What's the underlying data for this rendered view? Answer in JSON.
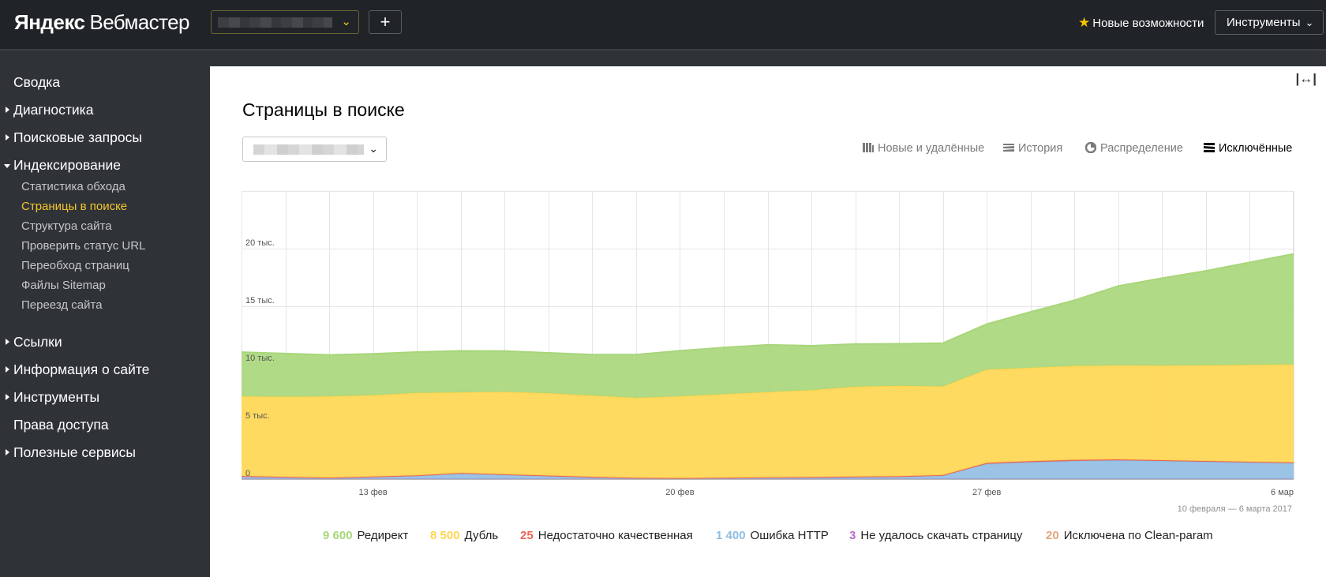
{
  "header": {
    "logo_brand": "Яндекс",
    "logo_product": "Вебмастер",
    "add_site_label": "+",
    "whats_new_label": "Новые возможности",
    "tools_label": "Инструменты"
  },
  "sidebar": {
    "items": [
      {
        "label": "Сводка",
        "expandable": false
      },
      {
        "label": "Диагностика",
        "expandable": true
      },
      {
        "label": "Поисковые запросы",
        "expandable": true
      },
      {
        "label": "Индексирование",
        "expandable": true,
        "expanded": true
      },
      {
        "label": "Ссылки",
        "expandable": true
      },
      {
        "label": "Информация о сайте",
        "expandable": true
      },
      {
        "label": "Инструменты",
        "expandable": true
      },
      {
        "label": "Права доступа",
        "expandable": false
      },
      {
        "label": "Полезные сервисы",
        "expandable": true
      }
    ],
    "indexing_subitems": [
      {
        "label": "Статистика обхода"
      },
      {
        "label": "Страницы в поиске",
        "active": true
      },
      {
        "label": "Структура сайта"
      },
      {
        "label": "Проверить статус URL"
      },
      {
        "label": "Переобход страниц"
      },
      {
        "label": "Файлы Sitemap"
      },
      {
        "label": "Переезд сайта"
      }
    ]
  },
  "main": {
    "title": "Страницы в поиске",
    "tabs": [
      {
        "label": "Новые и удалённые",
        "icon": "bars-icon"
      },
      {
        "label": "История",
        "icon": "history-icon"
      },
      {
        "label": "Распределение",
        "icon": "pie-icon"
      },
      {
        "label": "Исключённые",
        "icon": "layers-icon",
        "active": true
      }
    ],
    "date_range": "10 февраля — 6 марта 2017"
  },
  "chart_data": {
    "type": "area",
    "stacked": true,
    "x": [
      "10 фев",
      "11 фев",
      "12 фев",
      "13 фев",
      "14 фев",
      "15 фев",
      "16 фев",
      "17 фев",
      "18 фев",
      "19 фев",
      "20 фев",
      "21 фев",
      "22 фев",
      "23 фев",
      "24 фев",
      "25 фев",
      "26 фев",
      "27 фев",
      "28 фев",
      "1 мар",
      "2 мар",
      "3 мар",
      "4 мар",
      "5 мар",
      "6 мар"
    ],
    "x_tick_labels": [
      "13 фев",
      "20 фев",
      "27 фев",
      "6 мар"
    ],
    "y_tick_labels": [
      "0",
      "5 тыс.",
      "10 тыс.",
      "15 тыс.",
      "20 тыс."
    ],
    "ylim": [
      0,
      25000
    ],
    "grid": true,
    "series": [
      {
        "name": "Исключена по Clean-param",
        "color": "#e0a67a",
        "legend_value": "20",
        "values": [
          20,
          20,
          20,
          20,
          20,
          20,
          20,
          20,
          20,
          20,
          20,
          20,
          20,
          20,
          20,
          20,
          20,
          20,
          20,
          20,
          20,
          20,
          20,
          20,
          20
        ]
      },
      {
        "name": "Не удалось скачать страницу",
        "color": "#b56fcb",
        "legend_value": "3",
        "values": [
          3,
          3,
          3,
          3,
          3,
          3,
          3,
          3,
          3,
          3,
          3,
          3,
          3,
          3,
          3,
          3,
          3,
          3,
          3,
          3,
          3,
          3,
          3,
          3,
          3
        ]
      },
      {
        "name": "Ошибка HTTP",
        "color": "#8fbde2",
        "legend_value": "1 400",
        "values": [
          220,
          150,
          80,
          180,
          280,
          480,
          370,
          260,
          150,
          60,
          40,
          70,
          100,
          130,
          170,
          200,
          300,
          1300,
          1450,
          1550,
          1600,
          1550,
          1500,
          1450,
          1400
        ]
      },
      {
        "name": "Недостаточно качественная",
        "color": "#e8655a",
        "legend_value": "25",
        "values": [
          25,
          25,
          25,
          25,
          25,
          25,
          25,
          25,
          25,
          25,
          25,
          25,
          25,
          25,
          25,
          25,
          25,
          80,
          90,
          100,
          90,
          70,
          50,
          35,
          25
        ]
      },
      {
        "name": "Дубль",
        "color": "#ffd64f",
        "legend_value": "8 500",
        "values": [
          6900,
          6950,
          7050,
          7050,
          7150,
          7000,
          7150,
          7150,
          7050,
          6950,
          7100,
          7250,
          7400,
          7550,
          7800,
          7850,
          7700,
          8100,
          8100,
          8150,
          8150,
          8200,
          8300,
          8400,
          8500
        ]
      },
      {
        "name": "Редирект",
        "color": "#a8d67a",
        "legend_value": "9 600",
        "values": [
          3850,
          3750,
          3600,
          3600,
          3550,
          3600,
          3550,
          3500,
          3550,
          3750,
          3950,
          4050,
          4100,
          3850,
          3700,
          3650,
          3750,
          3950,
          4850,
          5700,
          6900,
          7600,
          8200,
          8900,
          9600
        ]
      }
    ]
  }
}
